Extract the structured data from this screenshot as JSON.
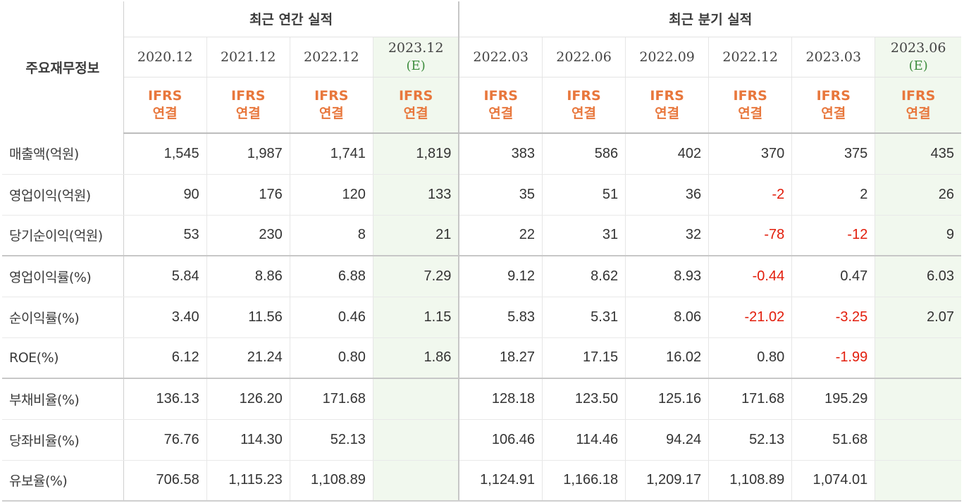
{
  "header": {
    "label": "주요재무정보",
    "annual_group": "최근 연간 실적",
    "quarterly_group": "최근 분기 실적",
    "periods": [
      {
        "date": "2020.12",
        "est": ""
      },
      {
        "date": "2021.12",
        "est": ""
      },
      {
        "date": "2022.12",
        "est": ""
      },
      {
        "date": "2023.12",
        "est": "(E)"
      },
      {
        "date": "2022.03",
        "est": ""
      },
      {
        "date": "2022.06",
        "est": ""
      },
      {
        "date": "2022.09",
        "est": ""
      },
      {
        "date": "2022.12",
        "est": ""
      },
      {
        "date": "2023.03",
        "est": ""
      },
      {
        "date": "2023.06",
        "est": "(E)"
      }
    ],
    "ifrs_top": "IFRS",
    "ifrs_bottom": "연결"
  },
  "rows": [
    {
      "label": "매출액(억원)",
      "values": [
        "1,545",
        "1,987",
        "1,741",
        "1,819",
        "383",
        "586",
        "402",
        "370",
        "375",
        "435"
      ]
    },
    {
      "label": "영업이익(억원)",
      "values": [
        "90",
        "176",
        "120",
        "133",
        "35",
        "51",
        "36",
        "-2",
        "2",
        "26"
      ]
    },
    {
      "label": "당기순이익(억원)",
      "values": [
        "53",
        "230",
        "8",
        "21",
        "22",
        "31",
        "32",
        "-78",
        "-12",
        "9"
      ]
    },
    {
      "label": "영업이익률(%)",
      "values": [
        "5.84",
        "8.86",
        "6.88",
        "7.29",
        "9.12",
        "8.62",
        "8.93",
        "-0.44",
        "0.47",
        "6.03"
      ]
    },
    {
      "label": "순이익률(%)",
      "values": [
        "3.40",
        "11.56",
        "0.46",
        "1.15",
        "5.83",
        "5.31",
        "8.06",
        "-21.02",
        "-3.25",
        "2.07"
      ]
    },
    {
      "label": "ROE(%)",
      "values": [
        "6.12",
        "21.24",
        "0.80",
        "1.86",
        "18.27",
        "17.15",
        "16.02",
        "0.80",
        "-1.99",
        ""
      ]
    },
    {
      "label": "부채비율(%)",
      "values": [
        "136.13",
        "126.20",
        "171.68",
        "",
        "128.18",
        "123.50",
        "125.16",
        "171.68",
        "195.29",
        ""
      ]
    },
    {
      "label": "당좌비율(%)",
      "values": [
        "76.76",
        "114.30",
        "52.13",
        "",
        "106.46",
        "114.46",
        "94.24",
        "52.13",
        "51.68",
        ""
      ]
    },
    {
      "label": "유보율(%)",
      "values": [
        "706.58",
        "1,115.23",
        "1,108.89",
        "",
        "1,124.91",
        "1,166.18",
        "1,209.17",
        "1,108.89",
        "1,074.01",
        ""
      ]
    }
  ],
  "colors": {
    "ifrs": "#e8773c",
    "estimate": "#3f8d3f",
    "negative": "#e21d0b",
    "estimate_bg": "#f1f8ee"
  }
}
